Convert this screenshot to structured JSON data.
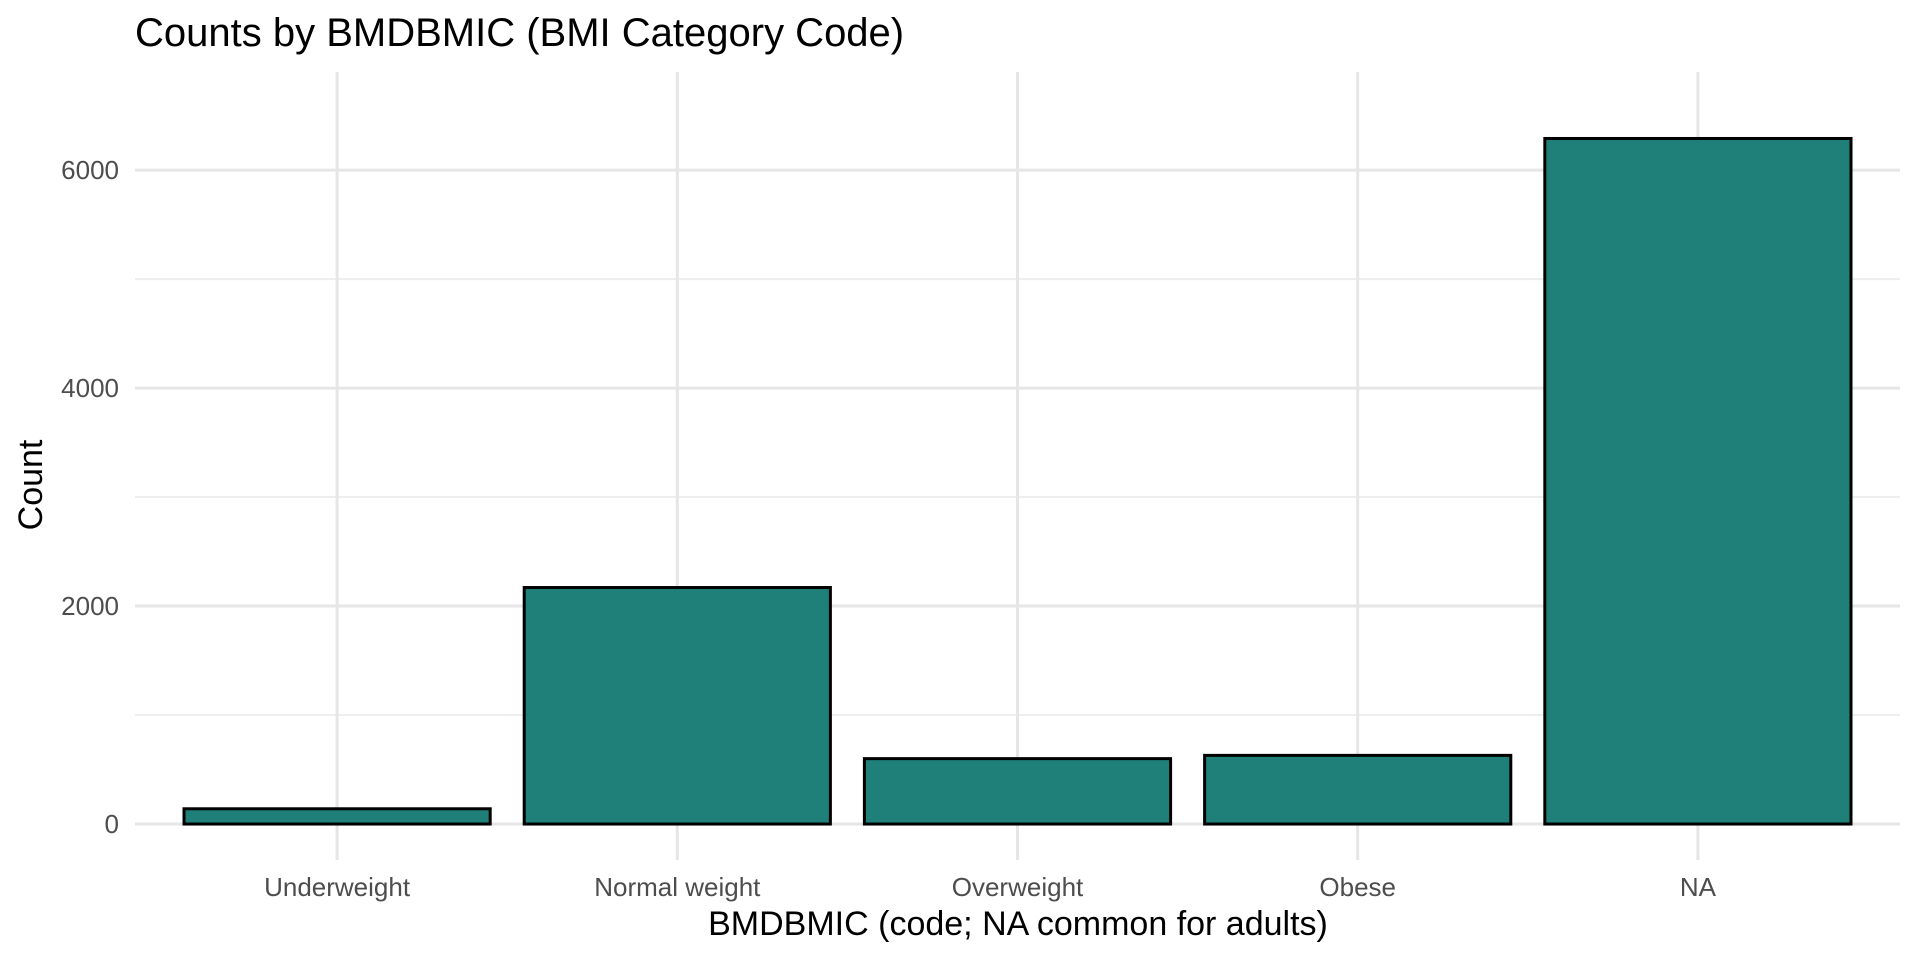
{
  "chart_data": {
    "type": "bar",
    "title": "Counts by BMDBMIC (BMI Category Code)",
    "xlabel": "BMDBMIC (code; NA common for adults)",
    "ylabel": "Count",
    "categories": [
      "Underweight",
      "Normal weight",
      "Overweight",
      "Obese",
      "NA"
    ],
    "values": [
      140,
      2170,
      600,
      630,
      6290
    ],
    "y_ticks": [
      0,
      2000,
      4000,
      6000
    ],
    "y_tick_labels": [
      "0",
      "2000",
      "4000",
      "6000"
    ],
    "ylim": [
      -330,
      6900
    ],
    "grid": true,
    "legend": "none",
    "colors": {
      "bar_fill": "#1f7f79",
      "bar_stroke": "#000000",
      "grid": "#e6e6e6",
      "background": "#ffffff"
    }
  }
}
